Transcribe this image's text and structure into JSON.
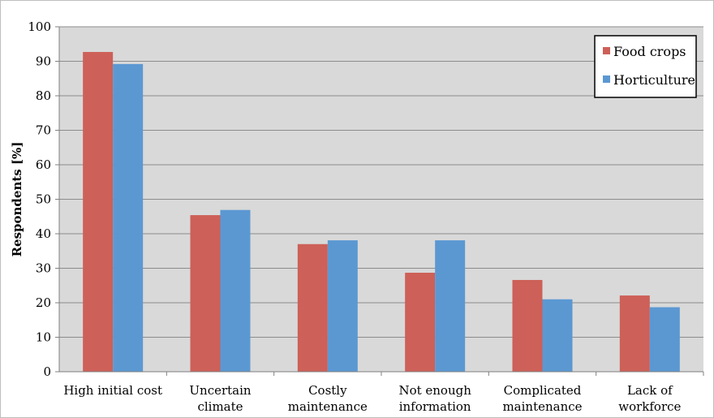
{
  "chart_data": {
    "type": "bar",
    "title": "",
    "xlabel": "",
    "ylabel": "Respondents [%]",
    "ylim": [
      0,
      100
    ],
    "yticks": [
      0,
      10,
      20,
      30,
      40,
      50,
      60,
      70,
      80,
      90,
      100
    ],
    "grid": true,
    "legend_position": "top-right",
    "categories": [
      [
        "High initial cost"
      ],
      [
        "Uncertain",
        "climate"
      ],
      [
        "Costly",
        "maintenance"
      ],
      [
        "Not enough",
        "information"
      ],
      [
        "Complicated",
        "maintenance"
      ],
      [
        "Lack of",
        "workforce"
      ]
    ],
    "series": [
      {
        "name": "Food crops",
        "color": "#cd6058",
        "values": [
          92.7,
          45.4,
          37.0,
          28.7,
          26.6,
          22.1
        ]
      },
      {
        "name": "Horticulture",
        "color": "#5b98d2",
        "values": [
          89.2,
          46.9,
          38.1,
          38.1,
          21.0,
          18.7
        ]
      }
    ],
    "plot_background": "#d9d9d9",
    "gridline_color": "#8c8c8c"
  }
}
